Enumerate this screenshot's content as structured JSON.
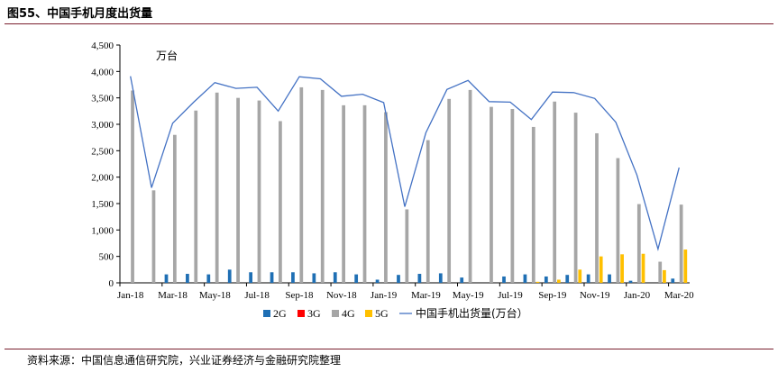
{
  "header": {
    "title": "图55、中国手机月度出货量"
  },
  "footer": {
    "source": "资料来源：中国信息通信研究院，兴业证券经济与金融研究院整理"
  },
  "chart_data": {
    "type": "bar",
    "unit_label": "万台",
    "months": [
      "Jan-18",
      "Feb-18",
      "Mar-18",
      "Apr-18",
      "May-18",
      "Jun-18",
      "Jul-18",
      "Aug-18",
      "Sep-18",
      "Oct-18",
      "Nov-18",
      "Dec-18",
      "Jan-19",
      "Feb-19",
      "Mar-19",
      "Apr-19",
      "May-19",
      "Jun-19",
      "Jul-19",
      "Aug-19",
      "Sep-19",
      "Oct-19",
      "Nov-19",
      "Dec-19",
      "Jan-20",
      "Feb-20",
      "Mar-20"
    ],
    "x_tick_labels": [
      "Jan-18",
      "Mar-18",
      "May-18",
      "Jul-18",
      "Sep-18",
      "Nov-18",
      "Jan-19",
      "Mar-19",
      "May-19",
      "Jul-19",
      "Sep-19",
      "Nov-19",
      "Jan-20",
      "Mar-20"
    ],
    "y_ticks": [
      "0",
      "500",
      "1,000",
      "1,500",
      "2,000",
      "2,500",
      "3,000",
      "3,500",
      "4,000",
      "4,500"
    ],
    "ylim": [
      0,
      4500
    ],
    "series": [
      {
        "name": "2G",
        "kind": "bar",
        "color": "#1f6fb4",
        "values": [
          0,
          0,
          160,
          170,
          160,
          250,
          200,
          200,
          200,
          180,
          200,
          160,
          60,
          150,
          170,
          180,
          100,
          0,
          120,
          160,
          120,
          150,
          160,
          160,
          40,
          0,
          80
        ]
      },
      {
        "name": "3G",
        "kind": "bar",
        "color": "#ff0000",
        "values": [
          0,
          0,
          0,
          0,
          0,
          0,
          0,
          0,
          0,
          0,
          0,
          0,
          0,
          0,
          0,
          0,
          0,
          0,
          0,
          0,
          0,
          0,
          0,
          0,
          0,
          0,
          0
        ]
      },
      {
        "name": "4G",
        "kind": "bar",
        "color": "#a6a6a6",
        "values": [
          3640,
          1750,
          2800,
          3260,
          3600,
          3500,
          3450,
          3060,
          3700,
          3650,
          3360,
          3360,
          3230,
          1390,
          2700,
          3480,
          3650,
          3330,
          3290,
          2950,
          3430,
          3220,
          2830,
          2360,
          1490,
          400,
          1480
        ]
      },
      {
        "name": "5G",
        "kind": "bar",
        "color": "#ffc000",
        "values": [
          0,
          0,
          0,
          0,
          0,
          0,
          0,
          0,
          0,
          0,
          0,
          0,
          0,
          0,
          0,
          0,
          0,
          0,
          0,
          20,
          60,
          250,
          500,
          540,
          550,
          240,
          630
        ]
      },
      {
        "name": "中国手机出货量(万台)",
        "kind": "line",
        "color": "#4472c4",
        "values": [
          3910,
          1800,
          3020,
          3420,
          3790,
          3680,
          3700,
          3250,
          3900,
          3860,
          3530,
          3570,
          3410,
          1440,
          2840,
          3660,
          3830,
          3430,
          3420,
          3090,
          3610,
          3600,
          3490,
          3040,
          2040,
          640,
          2180
        ]
      }
    ],
    "legend": {
      "placement": "bottom",
      "labels": [
        "2G",
        "3G",
        "4G",
        "5G",
        "中国手机出货量(万台）"
      ]
    }
  }
}
